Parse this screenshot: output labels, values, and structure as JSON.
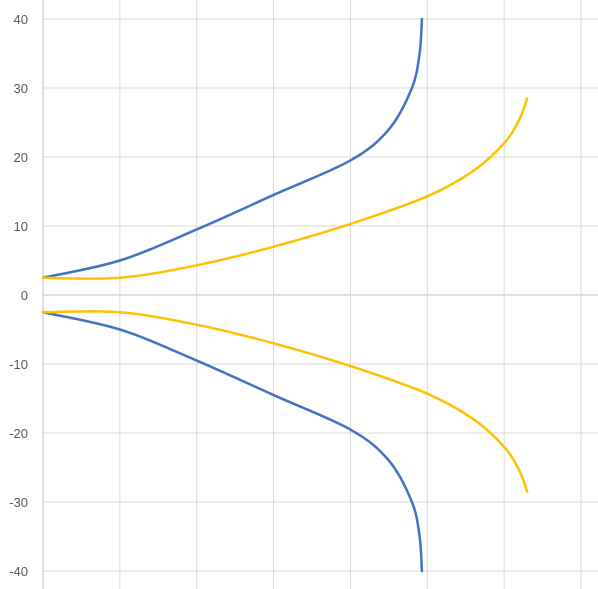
{
  "chart_data": {
    "type": "line",
    "title": "",
    "xlabel": "",
    "ylabel": "",
    "xlim": [
      0,
      7
    ],
    "ylim": [
      -40,
      40
    ],
    "y_ticks": [
      40,
      30,
      20,
      10,
      0,
      -10,
      -20,
      -30,
      -40
    ],
    "y_tick_labels": [
      "40",
      "30",
      "20",
      "10",
      "0",
      "-10",
      "-20",
      "-30",
      "-40"
    ],
    "x_gridlines": [
      0,
      1,
      2,
      3,
      4,
      5,
      6,
      7
    ],
    "grid": true,
    "legend": "none",
    "colors": {
      "grid": "#d9d9d9",
      "axis": "#bfbfbf",
      "blue": "#4472c4",
      "gold": "#ffc000"
    },
    "series": [
      {
        "color": "#4472c4",
        "points": [
          [
            0,
            2.5
          ],
          [
            1,
            5
          ],
          [
            2,
            9.5
          ],
          [
            3,
            14.5
          ],
          [
            4,
            19.5
          ],
          [
            4.5,
            24
          ],
          [
            4.8,
            30
          ],
          [
            4.9,
            35
          ],
          [
            4.93,
            40
          ]
        ]
      },
      {
        "color": "#4472c4",
        "points": [
          [
            0,
            -2.5
          ],
          [
            1,
            -5
          ],
          [
            2,
            -9.5
          ],
          [
            3,
            -14.5
          ],
          [
            4,
            -19.5
          ],
          [
            4.5,
            -24
          ],
          [
            4.8,
            -30
          ],
          [
            4.9,
            -35
          ],
          [
            4.93,
            -40
          ]
        ]
      },
      {
        "color": "#ffc000",
        "points": [
          [
            0,
            2.5
          ],
          [
            1,
            2.5
          ],
          [
            2,
            4.3
          ],
          [
            3,
            7
          ],
          [
            4,
            10.3
          ],
          [
            5,
            14.3
          ],
          [
            5.6,
            18
          ],
          [
            6,
            22
          ],
          [
            6.2,
            25.5
          ],
          [
            6.3,
            28.5
          ]
        ]
      },
      {
        "color": "#ffc000",
        "points": [
          [
            0,
            -2.5
          ],
          [
            1,
            -2.5
          ],
          [
            2,
            -4.3
          ],
          [
            3,
            -7
          ],
          [
            4,
            -10.3
          ],
          [
            5,
            -14.3
          ],
          [
            5.6,
            -18
          ],
          [
            6,
            -22
          ],
          [
            6.2,
            -25.5
          ],
          [
            6.3,
            -28.5
          ]
        ]
      }
    ]
  }
}
